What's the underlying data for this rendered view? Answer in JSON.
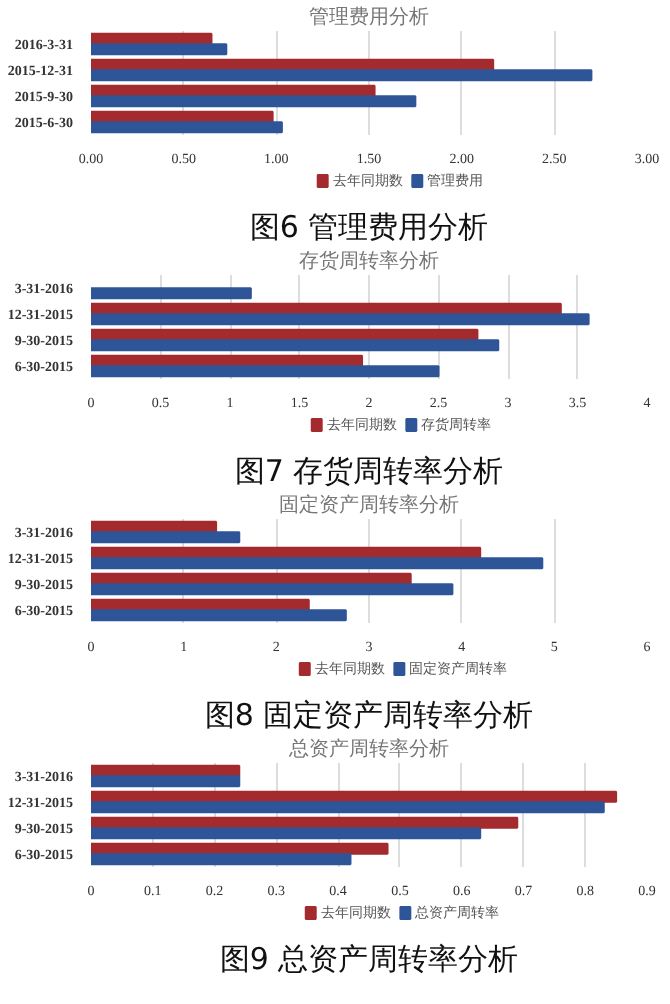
{
  "chart_data": [
    {
      "type": "bar",
      "orientation": "horizontal",
      "title": "管理费用分析",
      "annotations": [
        "图6 管理费用分析"
      ],
      "categories": [
        "2016-3-31",
        "2015-12-31",
        "2015-9-30",
        "2015-6-30"
      ],
      "series": [
        {
          "name": "去年同期数",
          "color": "#a32b2e",
          "values": [
            0.65,
            2.17,
            1.53,
            0.98
          ]
        },
        {
          "name": "管理费用",
          "color": "#2e5597",
          "values": [
            0.73,
            2.7,
            1.75,
            1.03
          ]
        }
      ],
      "xlim": [
        0,
        3
      ],
      "xticks": [
        {
          "value": 0,
          "label": "0.00"
        },
        {
          "value": 0.5,
          "label": "0.50"
        },
        {
          "value": 1,
          "label": "1.00"
        },
        {
          "value": 1.5,
          "label": "1.50"
        },
        {
          "value": 2,
          "label": "2.00"
        },
        {
          "value": 2.5,
          "label": "2.50"
        },
        {
          "value": 3,
          "label": "3.00"
        }
      ],
      "grid": "x",
      "legend": "bottom"
    },
    {
      "type": "bar",
      "orientation": "horizontal",
      "title": "存货周转率分析",
      "annotations": [
        "图7 存货周转率分析"
      ],
      "categories": [
        "3-31-2016",
        "12-31-2015",
        "9-30-2015",
        "6-30-2015"
      ],
      "series": [
        {
          "name": "去年同期数",
          "color": "#a32b2e",
          "values": [
            null,
            3.38,
            2.78,
            1.95
          ]
        },
        {
          "name": "存货周转率",
          "color": "#2e5597",
          "values": [
            1.15,
            3.58,
            2.93,
            2.5
          ]
        }
      ],
      "xlim": [
        0,
        4
      ],
      "xticks": [
        0,
        0.5,
        1,
        1.5,
        2,
        2.5,
        3,
        3.5,
        4
      ],
      "grid": "x",
      "legend": "bottom"
    },
    {
      "type": "bar",
      "orientation": "horizontal",
      "title": "固定资产周转率分析",
      "annotations": [
        "图8 固定资产周转率分析"
      ],
      "categories": [
        "3-31-2016",
        "12-31-2015",
        "9-30-2015",
        "6-30-2015"
      ],
      "series": [
        {
          "name": "去年同期数",
          "color": "#a32b2e",
          "values": [
            1.35,
            4.2,
            3.45,
            2.35
          ]
        },
        {
          "name": "固定资产周转率",
          "color": "#2e5597",
          "values": [
            1.6,
            4.87,
            3.9,
            2.75
          ]
        }
      ],
      "xlim": [
        0,
        6
      ],
      "xticks": [
        0,
        1,
        2,
        3,
        4,
        5,
        6
      ],
      "grid": "x",
      "legend": "bottom"
    },
    {
      "type": "bar",
      "orientation": "horizontal",
      "title": "总资产周转率分析",
      "annotations": [
        "图9 总资产周转率分析"
      ],
      "categories": [
        "3-31-2016",
        "12-31-2015",
        "9-30-2015",
        "6-30-2015"
      ],
      "series": [
        {
          "name": "去年同期数",
          "color": "#a32b2e",
          "values": [
            0.24,
            0.85,
            0.69,
            0.48
          ]
        },
        {
          "name": "总资产周转率",
          "color": "#2e5597",
          "values": [
            0.24,
            0.83,
            0.63,
            0.42
          ]
        }
      ],
      "xlim": [
        0,
        0.9
      ],
      "xticks": [
        0,
        0.1,
        0.2,
        0.3,
        0.4,
        0.5,
        0.6,
        0.7,
        0.8,
        0.9
      ],
      "grid": "x",
      "legend": "bottom"
    }
  ]
}
